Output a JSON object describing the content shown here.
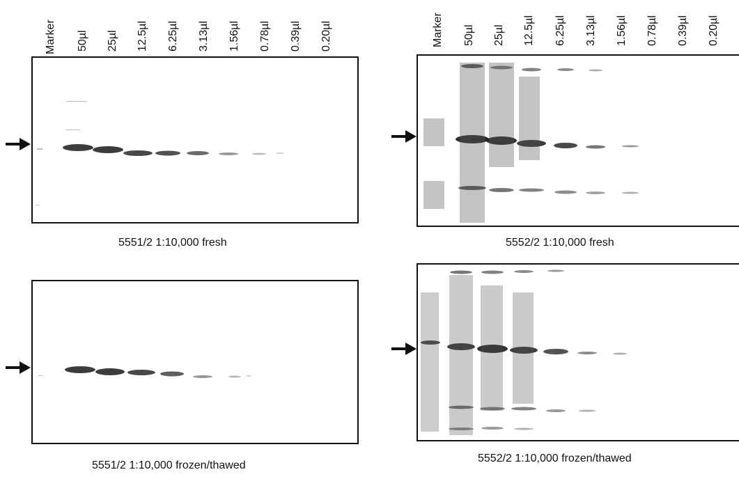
{
  "lanes": [
    "Marker",
    "50µl",
    "25µl",
    "12.5µl",
    "6.25µl",
    "3.13µl",
    "1.56µl",
    "0.78µl",
    "0.39µl",
    "0.20µl"
  ],
  "panels": [
    {
      "id": "p1",
      "caption": "5551/2 1:10,000 fresh"
    },
    {
      "id": "p2",
      "caption": "5552/2 1:10,000 fresh"
    },
    {
      "id": "p3",
      "caption": "5551/2 1:10,000 frozen/thawed"
    },
    {
      "id": "p4",
      "caption": "5552/2 1:10,000 frozen/thawed"
    }
  ],
  "colors": {
    "band": "#1a1a1a",
    "smear": "#555555",
    "frame": "#111111"
  }
}
